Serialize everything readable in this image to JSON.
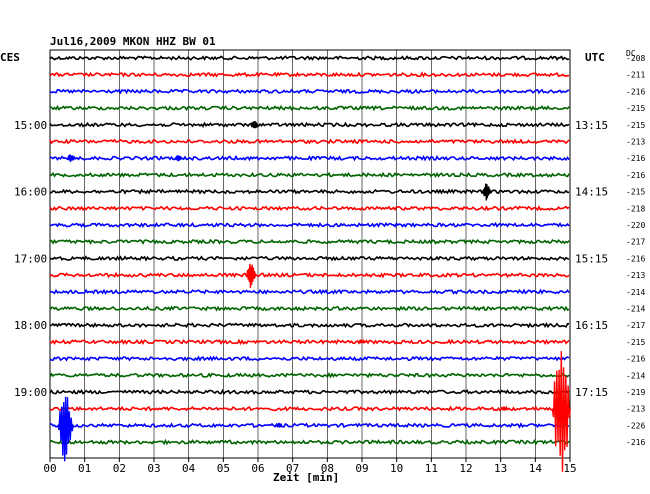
{
  "chart_data": {
    "type": "line",
    "title": "Jul16,2009   MKON HHZ BW 01",
    "left_axis_label": "CES",
    "right_axis_label": "UTC",
    "dc_label": "DC",
    "xlabel": "Zeit [min]",
    "xlim": [
      0,
      15
    ],
    "x_tick_labels": [
      "00",
      "01",
      "02",
      "03",
      "04",
      "05",
      "06",
      "07",
      "08",
      "09",
      "10",
      "11",
      "12",
      "13",
      "14",
      "15"
    ],
    "trace_colors": [
      "#000000",
      "#ff0000",
      "#0000ff",
      "#006400"
    ],
    "left_time_labels": [
      {
        "trace": 4,
        "label": "15:00"
      },
      {
        "trace": 8,
        "label": "16:00"
      },
      {
        "trace": 12,
        "label": "17:00"
      },
      {
        "trace": 16,
        "label": "18:00"
      },
      {
        "trace": 20,
        "label": "19:00"
      }
    ],
    "right_time_labels": [
      {
        "trace": 4,
        "label": "13:15"
      },
      {
        "trace": 8,
        "label": "14:15"
      },
      {
        "trace": 12,
        "label": "15:15"
      },
      {
        "trace": 16,
        "label": "16:15"
      },
      {
        "trace": 20,
        "label": "17:15"
      }
    ],
    "dc_offsets": [
      -208,
      -211,
      -216,
      -215,
      -215,
      -213,
      -216,
      -216,
      -215,
      -218,
      -220,
      -217,
      -216,
      -213,
      -214,
      -214,
      -217,
      -215,
      -216,
      -214,
      -219,
      -213,
      -226,
      -216
    ],
    "events": [
      {
        "trace": 4,
        "minute": 5.9,
        "amplitude": 0.6
      },
      {
        "trace": 6,
        "minute": 0.6,
        "amplitude": 0.5
      },
      {
        "trace": 6,
        "minute": 3.7,
        "amplitude": 0.4
      },
      {
        "trace": 8,
        "minute": 12.6,
        "amplitude": 1.1
      },
      {
        "trace": 13,
        "minute": 5.8,
        "amplitude": 1.6
      },
      {
        "trace": 17,
        "minute": 9.0,
        "amplitude": 0.2
      },
      {
        "trace": 22,
        "minute": 0.45,
        "amplitude": 4.5
      },
      {
        "trace": 22,
        "minute": 6.6,
        "amplitude": 0.3
      },
      {
        "trace": 21,
        "minute": 14.75,
        "amplitude": 9.0
      },
      {
        "trace": 21,
        "minute": 13.1,
        "amplitude": 0.3
      }
    ]
  }
}
